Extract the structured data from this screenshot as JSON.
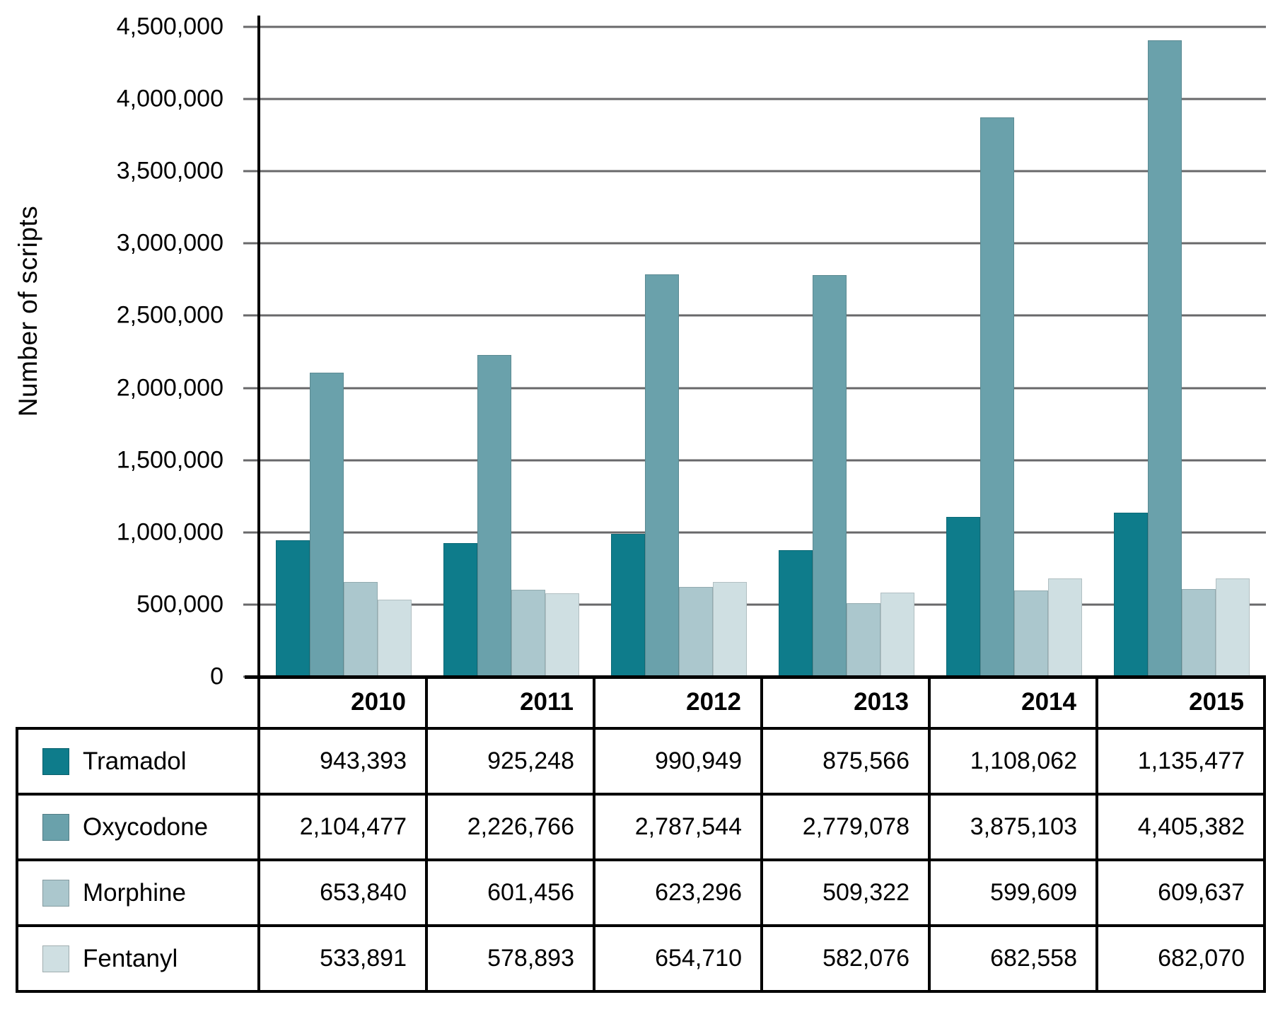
{
  "figure": {
    "background": "#ffffff"
  },
  "chart_data": {
    "type": "bar",
    "title": "",
    "xlabel": "",
    "ylabel": "Number of scripts",
    "ylim": [
      0,
      4500000
    ],
    "ytick_step": 500000,
    "grid": true,
    "legend_position": "table-left",
    "categories": [
      "2010",
      "2011",
      "2012",
      "2013",
      "2014",
      "2015"
    ],
    "series": [
      {
        "name": "Tramadol",
        "color": "#0e7c8b",
        "values": [
          943393,
          925248,
          990949,
          875566,
          1108062,
          1135477
        ]
      },
      {
        "name": "Oxycodone",
        "color": "#6aa1ab",
        "values": [
          2104477,
          2226766,
          2787544,
          2779078,
          3875103,
          4405382
        ]
      },
      {
        "name": "Morphine",
        "color": "#abc7cd",
        "values": [
          653840,
          601456,
          623296,
          509322,
          599609,
          609637
        ]
      },
      {
        "name": "Fentanyl",
        "color": "#cfdfe2",
        "values": [
          533891,
          578893,
          654710,
          582076,
          682558,
          682070
        ]
      }
    ],
    "colors": {
      "axis": "#000000",
      "gridline": "#68686a",
      "table_border": "#000000",
      "text": "#000000"
    }
  }
}
